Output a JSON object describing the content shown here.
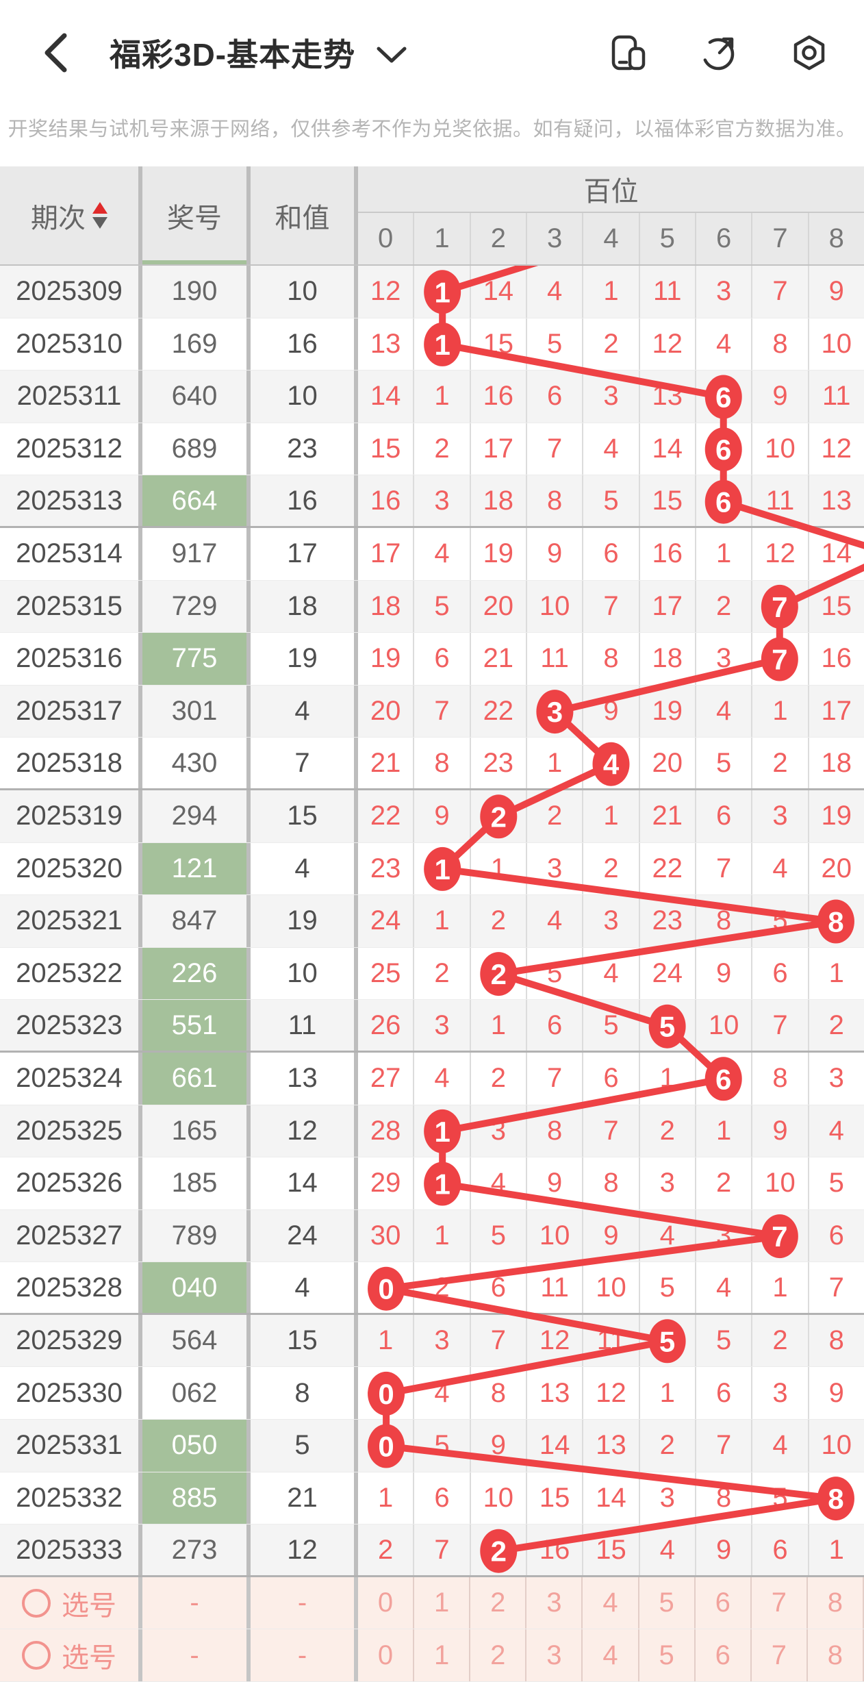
{
  "nav": {
    "title": "福彩3D-基本走势"
  },
  "disclaimer": "开奖结果与试机号来源于网络，仅供参考不作为兑奖依据。如有疑问，以福体彩官方数据为准。",
  "table": {
    "col_period": "期次",
    "col_number": "奖号",
    "col_sum": "和值",
    "col_group": "百位",
    "digit_headers": [
      "0",
      "1",
      "2",
      "3",
      "4",
      "5",
      "6",
      "7",
      "8"
    ],
    "rows": [
      {
        "period": "2025309",
        "number": "190",
        "sum": "10",
        "cells": [
          "12",
          "1",
          "14",
          "4",
          "1",
          "11",
          "3",
          "7",
          "9"
        ],
        "hit": 1,
        "green": false
      },
      {
        "period": "2025310",
        "number": "169",
        "sum": "16",
        "cells": [
          "13",
          "1",
          "15",
          "5",
          "2",
          "12",
          "4",
          "8",
          "10"
        ],
        "hit": 1,
        "green": false
      },
      {
        "period": "2025311",
        "number": "640",
        "sum": "10",
        "cells": [
          "14",
          "1",
          "16",
          "6",
          "3",
          "13",
          "6",
          "9",
          "11"
        ],
        "hit": 6,
        "green": false
      },
      {
        "period": "2025312",
        "number": "689",
        "sum": "23",
        "cells": [
          "15",
          "2",
          "17",
          "7",
          "4",
          "14",
          "6",
          "10",
          "12"
        ],
        "hit": 6,
        "green": false
      },
      {
        "period": "2025313",
        "number": "664",
        "sum": "16",
        "cells": [
          "16",
          "3",
          "18",
          "8",
          "5",
          "15",
          "6",
          "11",
          "13"
        ],
        "hit": 6,
        "green": true
      },
      {
        "period": "2025314",
        "number": "917",
        "sum": "17",
        "cells": [
          "17",
          "4",
          "19",
          "9",
          "6",
          "16",
          "1",
          "12",
          "14"
        ],
        "hit": 9,
        "green": false
      },
      {
        "period": "2025315",
        "number": "729",
        "sum": "18",
        "cells": [
          "18",
          "5",
          "20",
          "10",
          "7",
          "17",
          "2",
          "7",
          "15"
        ],
        "hit": 7,
        "green": false
      },
      {
        "period": "2025316",
        "number": "775",
        "sum": "19",
        "cells": [
          "19",
          "6",
          "21",
          "11",
          "8",
          "18",
          "3",
          "7",
          "16"
        ],
        "hit": 7,
        "green": true
      },
      {
        "period": "2025317",
        "number": "301",
        "sum": "4",
        "cells": [
          "20",
          "7",
          "22",
          "3",
          "9",
          "19",
          "4",
          "1",
          "17"
        ],
        "hit": 3,
        "green": false
      },
      {
        "period": "2025318",
        "number": "430",
        "sum": "7",
        "cells": [
          "21",
          "8",
          "23",
          "1",
          "4",
          "20",
          "5",
          "2",
          "18"
        ],
        "hit": 4,
        "green": false
      },
      {
        "period": "2025319",
        "number": "294",
        "sum": "15",
        "cells": [
          "22",
          "9",
          "2",
          "2",
          "1",
          "21",
          "6",
          "3",
          "19"
        ],
        "hit": 2,
        "green": false
      },
      {
        "period": "2025320",
        "number": "121",
        "sum": "4",
        "cells": [
          "23",
          "1",
          "1",
          "3",
          "2",
          "22",
          "7",
          "4",
          "20"
        ],
        "hit": 1,
        "green": true
      },
      {
        "period": "2025321",
        "number": "847",
        "sum": "19",
        "cells": [
          "24",
          "1",
          "2",
          "4",
          "3",
          "23",
          "8",
          "5",
          "8"
        ],
        "hit": 8,
        "green": false
      },
      {
        "period": "2025322",
        "number": "226",
        "sum": "10",
        "cells": [
          "25",
          "2",
          "2",
          "5",
          "4",
          "24",
          "9",
          "6",
          "1"
        ],
        "hit": 2,
        "green": true
      },
      {
        "period": "2025323",
        "number": "551",
        "sum": "11",
        "cells": [
          "26",
          "3",
          "1",
          "6",
          "5",
          "5",
          "10",
          "7",
          "2"
        ],
        "hit": 5,
        "green": true
      },
      {
        "period": "2025324",
        "number": "661",
        "sum": "13",
        "cells": [
          "27",
          "4",
          "2",
          "7",
          "6",
          "1",
          "6",
          "8",
          "3"
        ],
        "hit": 6,
        "green": true
      },
      {
        "period": "2025325",
        "number": "165",
        "sum": "12",
        "cells": [
          "28",
          "1",
          "3",
          "8",
          "7",
          "2",
          "1",
          "9",
          "4"
        ],
        "hit": 1,
        "green": false
      },
      {
        "period": "2025326",
        "number": "185",
        "sum": "14",
        "cells": [
          "29",
          "1",
          "4",
          "9",
          "8",
          "3",
          "2",
          "10",
          "5"
        ],
        "hit": 1,
        "green": false
      },
      {
        "period": "2025327",
        "number": "789",
        "sum": "24",
        "cells": [
          "30",
          "1",
          "5",
          "10",
          "9",
          "4",
          "3",
          "7",
          "6"
        ],
        "hit": 7,
        "green": false
      },
      {
        "period": "2025328",
        "number": "040",
        "sum": "4",
        "cells": [
          "0",
          "2",
          "6",
          "11",
          "10",
          "5",
          "4",
          "1",
          "7"
        ],
        "hit": 0,
        "green": true
      },
      {
        "period": "2025329",
        "number": "564",
        "sum": "15",
        "cells": [
          "1",
          "3",
          "7",
          "12",
          "11",
          "5",
          "5",
          "2",
          "8"
        ],
        "hit": 5,
        "green": false
      },
      {
        "period": "2025330",
        "number": "062",
        "sum": "8",
        "cells": [
          "0",
          "4",
          "8",
          "13",
          "12",
          "1",
          "6",
          "3",
          "9"
        ],
        "hit": 0,
        "green": false
      },
      {
        "period": "2025331",
        "number": "050",
        "sum": "5",
        "cells": [
          "0",
          "5",
          "9",
          "14",
          "13",
          "2",
          "7",
          "4",
          "10"
        ],
        "hit": 0,
        "green": true
      },
      {
        "period": "2025332",
        "number": "885",
        "sum": "21",
        "cells": [
          "1",
          "6",
          "10",
          "15",
          "14",
          "3",
          "8",
          "5",
          "8"
        ],
        "hit": 8,
        "green": true
      },
      {
        "period": "2025333",
        "number": "273",
        "sum": "12",
        "cells": [
          "2",
          "7",
          "2",
          "16",
          "15",
          "4",
          "9",
          "6",
          "1"
        ],
        "hit": 2,
        "green": false
      }
    ],
    "select_label": "选号",
    "select_rows": [
      {
        "number": "-",
        "sum": "-",
        "digits": [
          "0",
          "1",
          "2",
          "3",
          "4",
          "5",
          "6",
          "7",
          "8"
        ]
      },
      {
        "number": "-",
        "sum": "-",
        "digits": [
          "0",
          "1",
          "2",
          "3",
          "4",
          "5",
          "6",
          "7",
          "8"
        ]
      }
    ]
  },
  "chart": {
    "type": "trend-line",
    "position_label": "百位",
    "entry_from_column": 4,
    "hit_columns": [
      1,
      1,
      6,
      6,
      6,
      9,
      7,
      7,
      3,
      4,
      2,
      1,
      8,
      2,
      5,
      6,
      1,
      1,
      7,
      0,
      5,
      0,
      0,
      8,
      2
    ]
  },
  "colors": {
    "accent_red": "#ee4245",
    "cell_red": "#f15f5f",
    "green": "#a5c19b",
    "header_bg": "#e9e9e9",
    "row_alt": "#f4f4f4",
    "pink_bg": "#fceee8",
    "pink_text": "#f2938e"
  }
}
